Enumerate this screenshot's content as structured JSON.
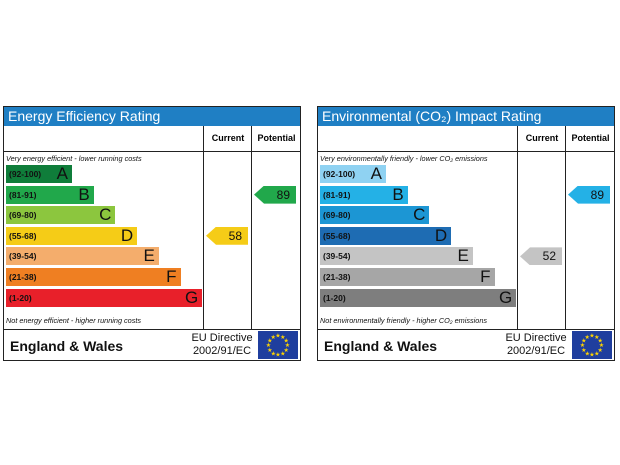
{
  "panels": [
    {
      "title": "Energy Efficiency Rating",
      "current_label": "Current",
      "potential_label": "Potential",
      "top_note": "Very energy efficient - lower running costs",
      "bottom_note": "Not energy efficient - higher running costs",
      "bands": [
        {
          "range": "(92-100)",
          "letter": "A",
          "color": "#0f7d3a"
        },
        {
          "range": "(81-91)",
          "letter": "B",
          "color": "#21a84b"
        },
        {
          "range": "(69-80)",
          "letter": "C",
          "color": "#8cc63e"
        },
        {
          "range": "(55-68)",
          "letter": "D",
          "color": "#f5cc17"
        },
        {
          "range": "(39-54)",
          "letter": "E",
          "color": "#f4ad6c"
        },
        {
          "range": "(21-38)",
          "letter": "F",
          "color": "#ef7f22"
        },
        {
          "range": "(1-20)",
          "letter": "G",
          "color": "#e8202a"
        }
      ],
      "current": {
        "value": "58",
        "color": "#f5cc17",
        "band_index": 3
      },
      "potential": {
        "value": "89",
        "color": "#21a84b",
        "band_index": 1
      },
      "country": "England & Wales",
      "directive_line1": "EU Directive",
      "directive_line2": "2002/91/EC"
    },
    {
      "title": "Environmental (CO₂) Impact Rating",
      "current_label": "Current",
      "potential_label": "Potential",
      "top_note": "Very environmentally friendly - lower CO₂ emissions",
      "bottom_note": "Not environmentally friendly - higher CO₂ emissions",
      "bands": [
        {
          "range": "(92-100)",
          "letter": "A",
          "color": "#8fd2f2"
        },
        {
          "range": "(81-91)",
          "letter": "B",
          "color": "#24b1e6"
        },
        {
          "range": "(69-80)",
          "letter": "C",
          "color": "#1c96d4"
        },
        {
          "range": "(55-68)",
          "letter": "D",
          "color": "#1e6cb3"
        },
        {
          "range": "(39-54)",
          "letter": "E",
          "color": "#c4c4c4"
        },
        {
          "range": "(21-38)",
          "letter": "F",
          "color": "#a6a6a6"
        },
        {
          "range": "(1-20)",
          "letter": "G",
          "color": "#7e7e7e"
        }
      ],
      "current": {
        "value": "52",
        "color": "#c4c4c4",
        "band_index": 4
      },
      "potential": {
        "value": "89",
        "color": "#24b1e6",
        "band_index": 1
      },
      "country": "England & Wales",
      "directive_line1": "EU Directive",
      "directive_line2": "2002/91/EC"
    }
  ]
}
